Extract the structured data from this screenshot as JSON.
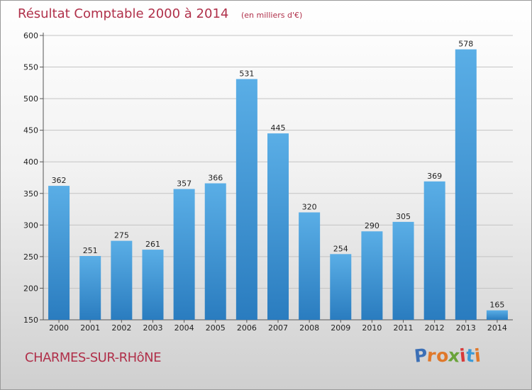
{
  "chart_data": {
    "type": "bar",
    "title": "Résultat Comptable 2000 à 2014",
    "subtitle": "(en milliers d'€)",
    "categories": [
      "2000",
      "2001",
      "2002",
      "2003",
      "2004",
      "2005",
      "2006",
      "2007",
      "2008",
      "2009",
      "2010",
      "2011",
      "2012",
      "2013",
      "2014"
    ],
    "values": [
      362,
      251,
      275,
      261,
      357,
      366,
      531,
      445,
      320,
      254,
      290,
      305,
      369,
      578,
      165
    ],
    "ylim": [
      150,
      600
    ],
    "yticks": [
      150,
      200,
      250,
      300,
      350,
      400,
      450,
      500,
      550,
      600
    ],
    "grid": true,
    "legend": "none"
  },
  "footer": {
    "commune": "CHARMES-SUR-RHôNE",
    "brand_letters": [
      "P",
      "r",
      "o",
      "x",
      "i",
      "t",
      "i"
    ]
  },
  "colors": {
    "bar_top": "#5aaee6",
    "bar_bottom": "#2a7cbf",
    "title": "#b0304a",
    "brand": [
      "#3b6fb6",
      "#e0782a",
      "#e0782a",
      "#6aa33a",
      "#d83a3a",
      "#3b9ad8",
      "#e0782a"
    ]
  }
}
